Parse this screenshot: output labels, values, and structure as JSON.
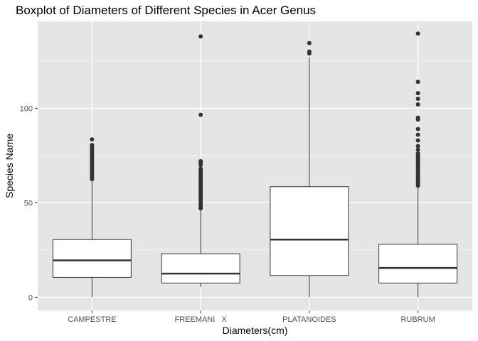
{
  "chart_data": {
    "type": "boxplot",
    "title": "Boxplot of Diameters of Different Species in Acer Genus",
    "xlabel": "Diameters(cm)",
    "ylabel": "Species Name",
    "categories": [
      "CAMPESTRE",
      "FREEMANI   X",
      "PLATANOIDES",
      "RUBRUM"
    ],
    "ylim": [
      -7,
      146
    ],
    "yticks": [
      0,
      50,
      100
    ],
    "grid": true,
    "colors": {
      "panel": "#e5e5e5",
      "grid_major": "#ffffff",
      "box_fill": "#ffffff",
      "box_stroke": "#333333",
      "outlier": "#333333"
    },
    "boxes": [
      {
        "category": "CAMPESTRE",
        "min": 0,
        "q1": 10.5,
        "median": 19.5,
        "q3": 30.5,
        "max": 61.5,
        "outliers": [
          62.5,
          63.5,
          64.5,
          65.5,
          66.5,
          67.5,
          68.5,
          69.5,
          70.5,
          71.5,
          72.5,
          73.5,
          74.5,
          75.5,
          76.5,
          77.5,
          78.5,
          79.5,
          80.5,
          83.5
        ]
      },
      {
        "category": "FREEMANI   X",
        "min": 5.5,
        "q1": 7.5,
        "median": 12.5,
        "q3": 23,
        "max": 46,
        "outliers": [
          47,
          48,
          49,
          50,
          51,
          52,
          53,
          54,
          55,
          56,
          57,
          58,
          59,
          60,
          61,
          62,
          63,
          64,
          65,
          66,
          67,
          68,
          70,
          71,
          72,
          96.5,
          138
        ]
      },
      {
        "category": "PLATANOIDES",
        "min": 0,
        "q1": 11.5,
        "median": 30.5,
        "q3": 58.5,
        "max": 127,
        "outliers": [
          129,
          130,
          134.5
        ]
      },
      {
        "category": "RUBRUM",
        "min": 0,
        "q1": 7.5,
        "median": 15.5,
        "q3": 28,
        "max": 58,
        "outliers": [
          59,
          60,
          61,
          62,
          63,
          64,
          65,
          66,
          67,
          68,
          69,
          70,
          71,
          72,
          73,
          74,
          75,
          76,
          78,
          80,
          83,
          86,
          89,
          94,
          95,
          102,
          105,
          108,
          114,
          139.5
        ]
      }
    ]
  }
}
